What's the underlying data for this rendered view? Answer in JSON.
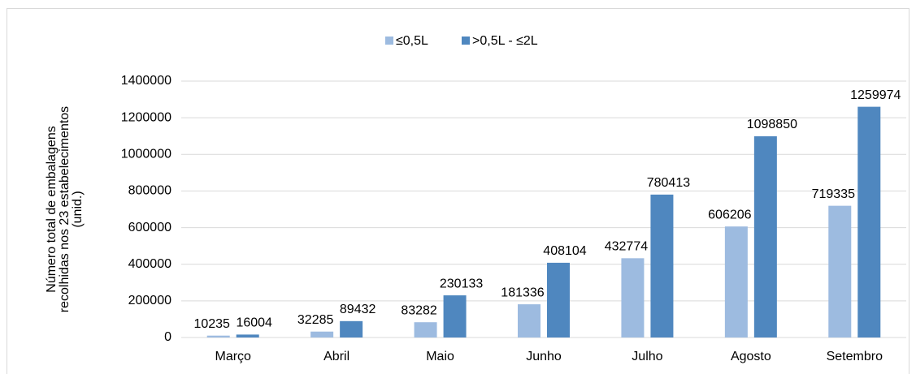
{
  "chart_data": {
    "type": "bar",
    "ylabel": [
      "Número total de embalagens",
      "recolhidas nos 23 estabelecimentos",
      "(unid.)"
    ],
    "categories": [
      "Março",
      "Abril",
      "Maio",
      "Junho",
      "Julho",
      "Agosto",
      "Setembro"
    ],
    "series": [
      {
        "name": "≤0,5L",
        "color": "#9dbbe0",
        "values": [
          10235,
          32285,
          83282,
          181336,
          432774,
          606206,
          719335
        ]
      },
      {
        "name": ">0,5L - ≤2L",
        "color": "#4f87bf",
        "values": [
          16004,
          89432,
          230133,
          408104,
          780413,
          1098850,
          1259974
        ]
      }
    ],
    "ylim": [
      0,
      1400000
    ],
    "yticks": [
      0,
      200000,
      400000,
      600000,
      800000,
      1000000,
      1200000,
      1400000
    ],
    "grid": true,
    "legend": "top"
  }
}
